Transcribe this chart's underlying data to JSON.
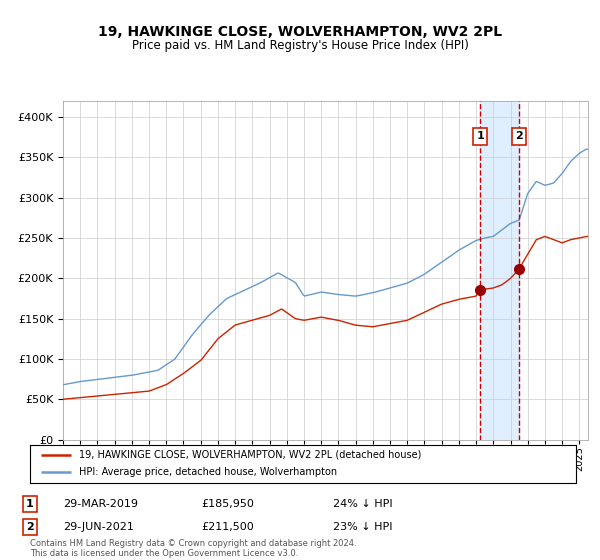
{
  "title": "19, HAWKINGE CLOSE, WOLVERHAMPTON, WV2 2PL",
  "subtitle": "Price paid vs. HM Land Registry's House Price Index (HPI)",
  "legend_line1": "19, HAWKINGE CLOSE, WOLVERHAMPTON, WV2 2PL (detached house)",
  "legend_line2": "HPI: Average price, detached house, Wolverhampton",
  "sale1_date": "29-MAR-2019",
  "sale1_price": "£185,950",
  "sale1_pct": "24% ↓ HPI",
  "sale1_year": 2019.23,
  "sale1_value": 185950,
  "sale2_date": "29-JUN-2021",
  "sale2_price": "£211,500",
  "sale2_pct": "23% ↓ HPI",
  "sale2_year": 2021.49,
  "sale2_value": 211500,
  "hpi_color": "#6699cc",
  "price_color": "#cc2200",
  "dot_color": "#990000",
  "vline_color": "#cc0000",
  "shade_color": "#ddeeff",
  "bg_color": "#ffffff",
  "grid_color": "#cccccc",
  "copyright_text": "Contains HM Land Registry data © Crown copyright and database right 2024.\nThis data is licensed under the Open Government Licence v3.0.",
  "xmin": 1995,
  "xmax": 2025.5,
  "ymin": 0,
  "ymax": 420000,
  "yticks": [
    0,
    50000,
    100000,
    150000,
    200000,
    250000,
    300000,
    350000,
    400000
  ]
}
